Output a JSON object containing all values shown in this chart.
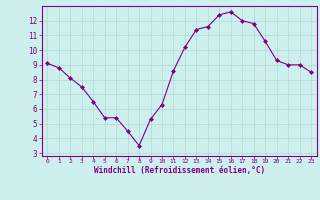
{
  "x": [
    0,
    1,
    2,
    3,
    4,
    5,
    6,
    7,
    8,
    9,
    10,
    11,
    12,
    13,
    14,
    15,
    16,
    17,
    18,
    19,
    20,
    21,
    22,
    23
  ],
  "y": [
    9.1,
    8.8,
    8.1,
    7.5,
    6.5,
    5.4,
    5.4,
    4.5,
    3.5,
    5.3,
    6.3,
    8.6,
    10.2,
    11.4,
    11.6,
    12.4,
    12.6,
    12.0,
    11.8,
    10.6,
    9.3,
    9.0,
    9.0,
    8.5
  ],
  "xlim": [
    -0.5,
    23.5
  ],
  "ylim": [
    2.8,
    13.0
  ],
  "yticks": [
    3,
    4,
    5,
    6,
    7,
    8,
    9,
    10,
    11,
    12
  ],
  "xticks": [
    0,
    1,
    2,
    3,
    4,
    5,
    6,
    7,
    8,
    9,
    10,
    11,
    12,
    13,
    14,
    15,
    16,
    17,
    18,
    19,
    20,
    21,
    22,
    23
  ],
  "xlabel": "Windchill (Refroidissement éolien,°C)",
  "line_color": "#800080",
  "marker_color": "#800080",
  "background_color": "#cdf0ee",
  "grid_color": "#b0d8d0",
  "tick_label_color": "#800080",
  "axis_label_color": "#800080",
  "spine_color": "#800080"
}
